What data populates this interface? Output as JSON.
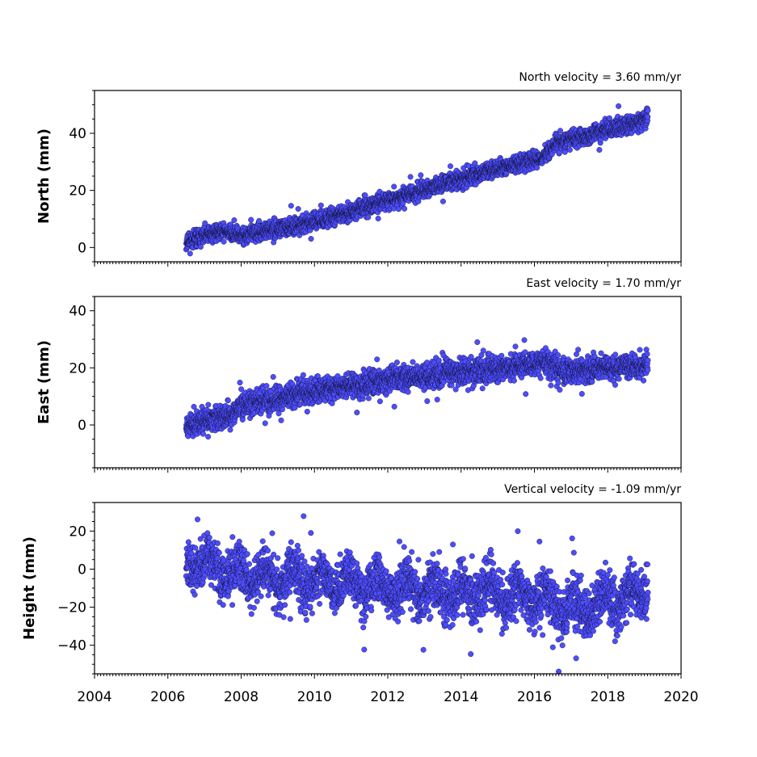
{
  "chart_data": [
    {
      "type": "scatter",
      "title": "North velocity = 3.60 mm/yr",
      "ylabel": "North (mm)",
      "xlim": [
        2004,
        2020
      ],
      "ylim": [
        -5,
        55
      ],
      "yticks": [
        0,
        20,
        40
      ],
      "xticks": [
        2004,
        2006,
        2008,
        2010,
        2012,
        2014,
        2016,
        2018,
        2020
      ],
      "show_xtick_labels": false,
      "series": [
        {
          "color": "#4d4dff",
          "edge_color": "#000000",
          "trend": [
            [
              2006.5,
              2.0
            ],
            [
              2007.5,
              6.0
            ],
            [
              2008.0,
              4.0
            ],
            [
              2010.0,
              9.0
            ],
            [
              2012.0,
              16.5
            ],
            [
              2014.0,
              24.0
            ],
            [
              2016.3,
              32.0
            ],
            [
              2016.6,
              36.5
            ],
            [
              2019.1,
              45.0
            ]
          ],
          "scatter_sd": 1.5,
          "start": 2006.5,
          "end": 2019.1,
          "step": 0.0045,
          "seed": 11
        }
      ]
    },
    {
      "type": "scatter",
      "title": "East velocity = 1.70 mm/yr",
      "ylabel": "East (mm)",
      "xlim": [
        2004,
        2020
      ],
      "ylim": [
        -15,
        45
      ],
      "yticks": [
        0,
        20,
        40
      ],
      "xticks": [
        2004,
        2006,
        2008,
        2010,
        2012,
        2014,
        2016,
        2018,
        2020
      ],
      "show_xtick_labels": false,
      "series": [
        {
          "color": "#4d4dff",
          "edge_color": "#000000",
          "trend": [
            [
              2006.5,
              0.0
            ],
            [
              2007.7,
              3.0
            ],
            [
              2008.0,
              7.0
            ],
            [
              2010.0,
              12.0
            ],
            [
              2012.0,
              16.0
            ],
            [
              2014.0,
              18.5
            ],
            [
              2016.4,
              22.0
            ],
            [
              2016.7,
              18.5
            ],
            [
              2019.1,
              21.0
            ]
          ],
          "scatter_sd": 2.2,
          "start": 2006.5,
          "end": 2019.1,
          "step": 0.0045,
          "seed": 23
        }
      ]
    },
    {
      "type": "scatter",
      "title": "Vertical velocity = -1.09 mm/yr",
      "ylabel": "Height (mm)",
      "xlim": [
        2004,
        2020
      ],
      "ylim": [
        -55,
        35
      ],
      "yticks": [
        -40,
        -20,
        0,
        20
      ],
      "xticks": [
        2004,
        2006,
        2008,
        2010,
        2012,
        2014,
        2016,
        2018,
        2020
      ],
      "show_xtick_labels": true,
      "series": [
        {
          "color": "#4d4dff",
          "edge_color": "#000000",
          "trend": [
            [
              2006.5,
              5.0
            ],
            [
              2008.0,
              -3.0
            ],
            [
              2010.0,
              -6.0
            ],
            [
              2012.0,
              -10.0
            ],
            [
              2014.0,
              -12.0
            ],
            [
              2016.0,
              -14.0
            ],
            [
              2017.0,
              -22.0
            ],
            [
              2019.1,
              -12.0
            ]
          ],
          "scatter_sd": 6.5,
          "seasonal_amplitude": 5.0,
          "start": 2006.5,
          "end": 2019.1,
          "step": 0.0045,
          "seed": 37
        }
      ]
    }
  ]
}
